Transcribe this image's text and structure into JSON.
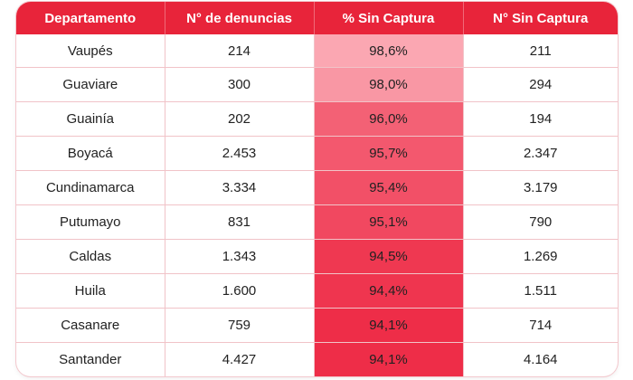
{
  "chart_data": {
    "type": "table",
    "columns": [
      "Departamento",
      "N° de denuncias",
      "% Sin Captura",
      "N° Sin Captura"
    ],
    "rows": [
      {
        "departamento": "Vaupés",
        "denuncias": "214",
        "pct": "98,6%",
        "sin_captura": "211",
        "pct_value": 98.6
      },
      {
        "departamento": "Guaviare",
        "denuncias": "300",
        "pct": "98,0%",
        "sin_captura": "294",
        "pct_value": 98.0
      },
      {
        "departamento": "Guainía",
        "denuncias": "202",
        "pct": "96,0%",
        "sin_captura": "194",
        "pct_value": 96.0
      },
      {
        "departamento": "Boyacá",
        "denuncias": "2.453",
        "pct": "95,7%",
        "sin_captura": "2.347",
        "pct_value": 95.7
      },
      {
        "departamento": "Cundinamarca",
        "denuncias": "3.334",
        "pct": "95,4%",
        "sin_captura": "3.179",
        "pct_value": 95.4
      },
      {
        "departamento": "Putumayo",
        "denuncias": "831",
        "pct": "95,1%",
        "sin_captura": "790",
        "pct_value": 95.1
      },
      {
        "departamento": "Caldas",
        "denuncias": "1.343",
        "pct": "94,5%",
        "sin_captura": "1.269",
        "pct_value": 94.5
      },
      {
        "departamento": "Huila",
        "denuncias": "1.600",
        "pct": "94,4%",
        "sin_captura": "1.511",
        "pct_value": 94.4
      },
      {
        "departamento": "Casanare",
        "denuncias": "759",
        "pct": "94,1%",
        "sin_captura": "714",
        "pct_value": 94.1
      },
      {
        "departamento": "Santander",
        "denuncias": "4.427",
        "pct": "94,1%",
        "sin_captura": "4.164",
        "pct_value": 94.1
      }
    ]
  },
  "colors": {
    "header": "#e8243a",
    "heat_light": "#fba7b2",
    "heat_dark": "#ee2d48"
  }
}
